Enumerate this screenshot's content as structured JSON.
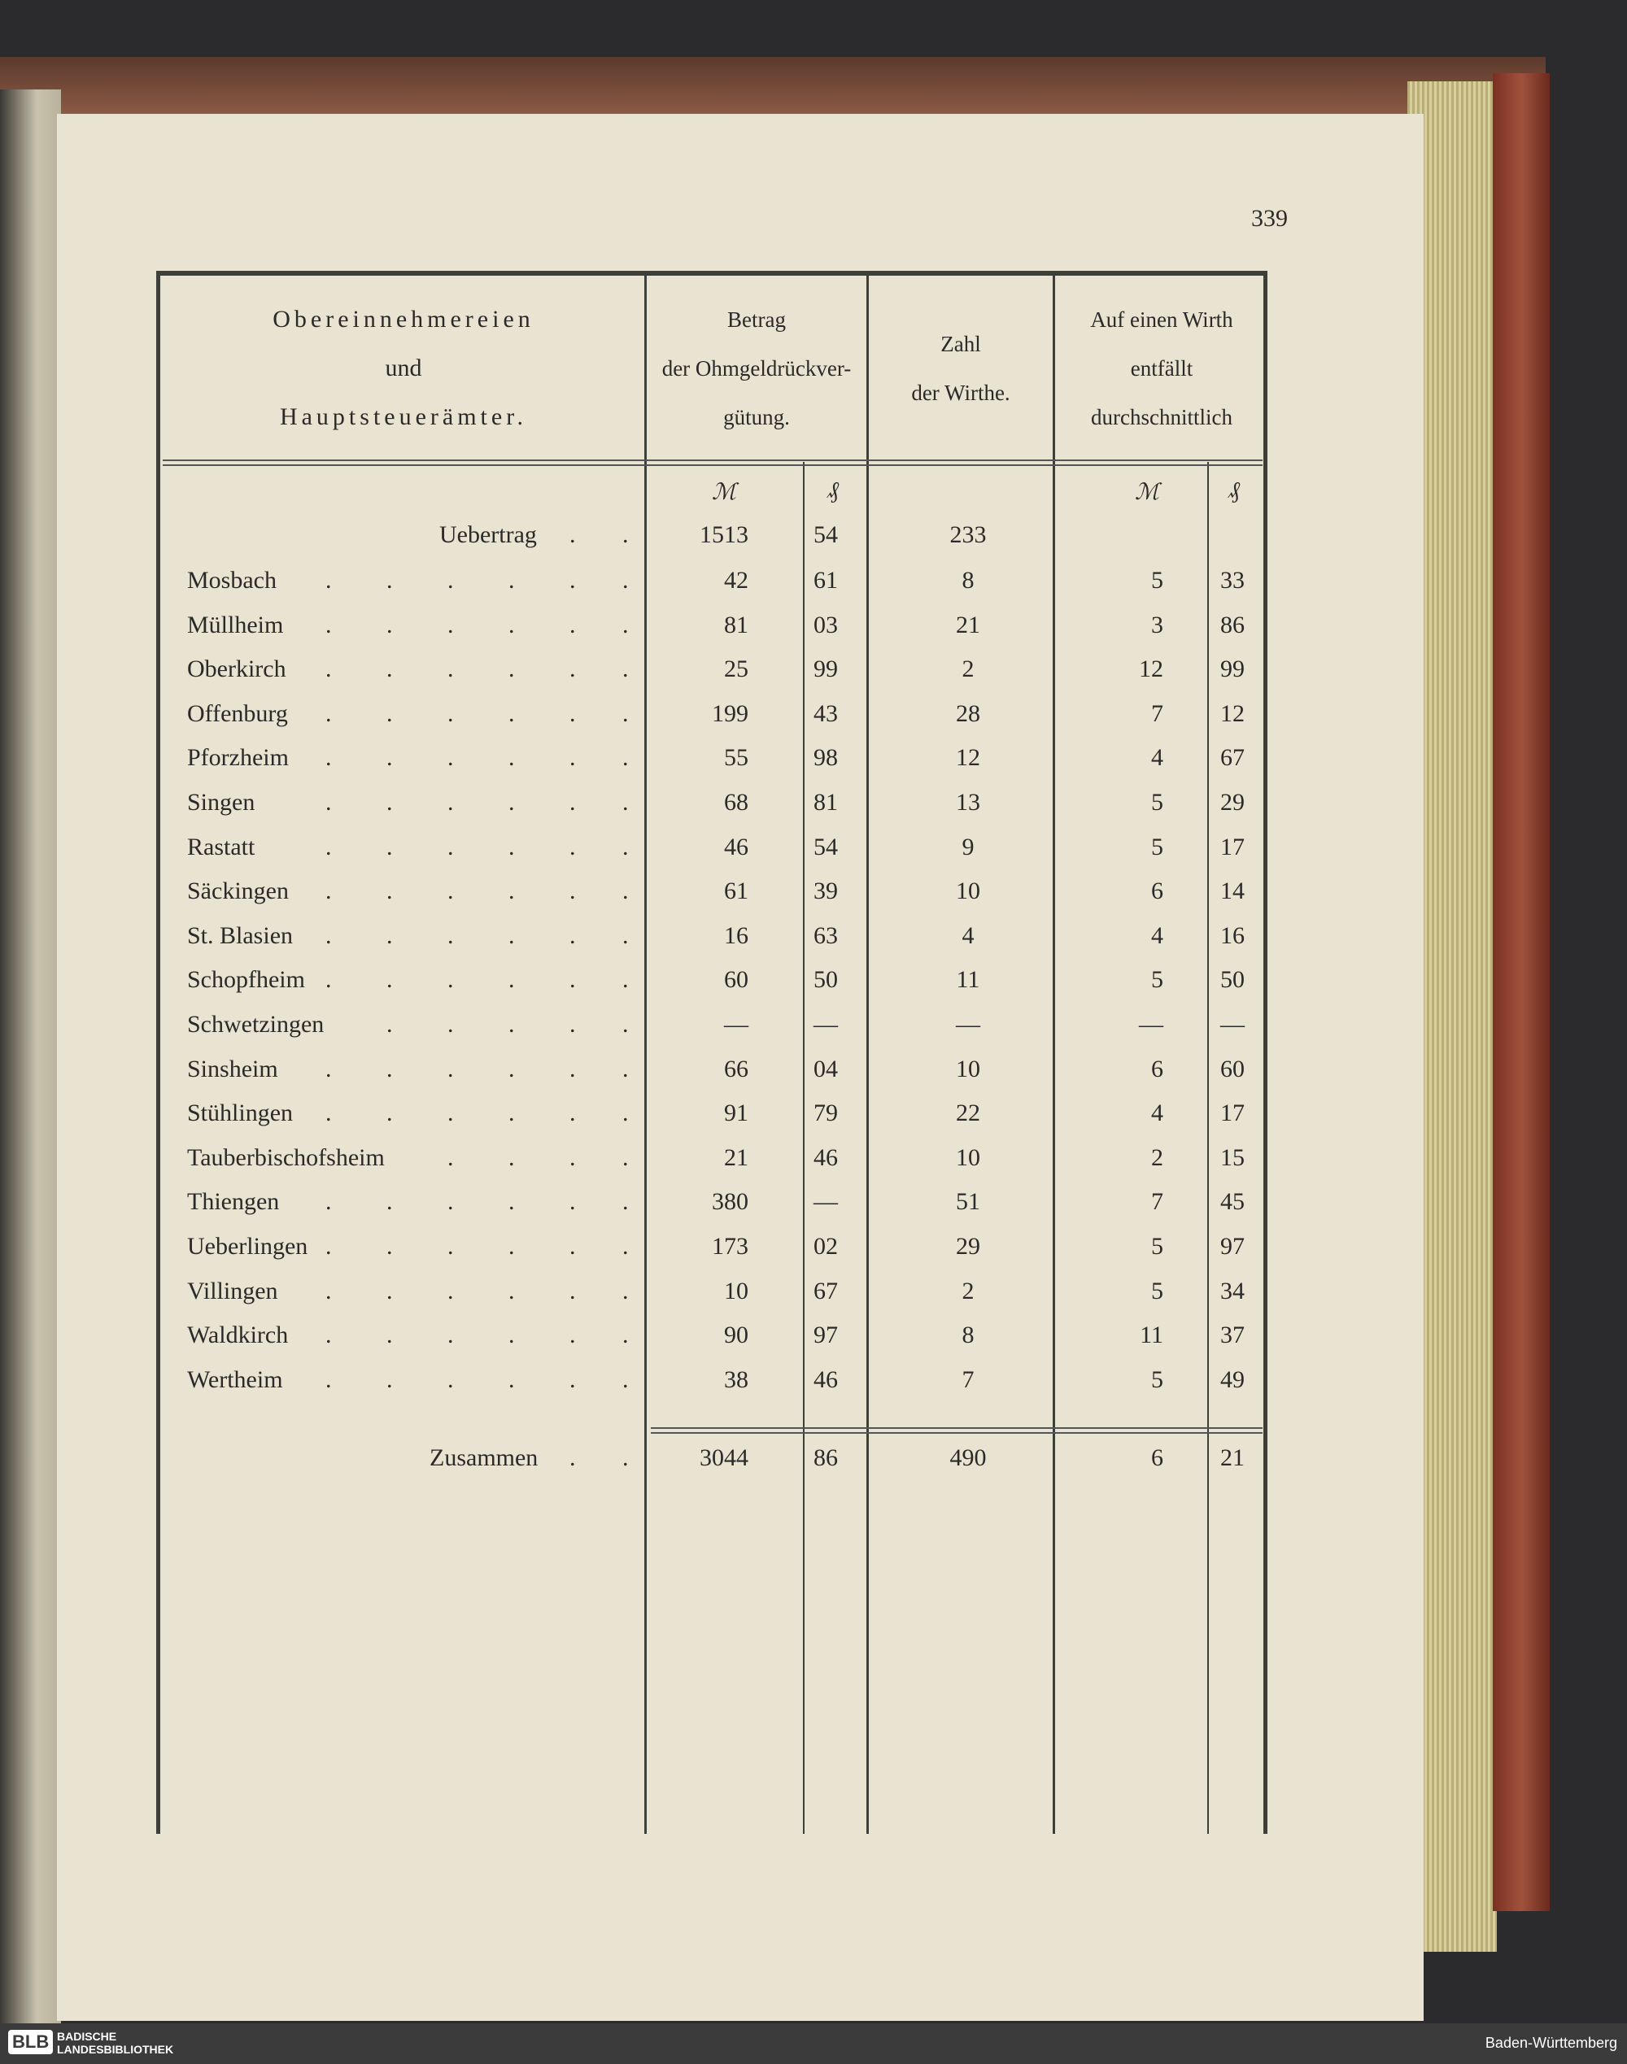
{
  "page_number": "339",
  "header": {
    "col1": [
      "Obereinnehmereien",
      "und",
      "Hauptsteuerämter."
    ],
    "col2": [
      "Betrag",
      "der Ohmgeldrückver-",
      "gütung."
    ],
    "col3": [
      "Zahl",
      "der Wirthe."
    ],
    "col4": [
      "Auf einen Wirth",
      "entfällt",
      "durchschnittlich"
    ],
    "unit_mark": "ℳ",
    "unit_pf": "₰"
  },
  "carry": {
    "label": "Uebertrag",
    "mark": "1513",
    "pf": "54",
    "wirthe": "233"
  },
  "rows": [
    {
      "name": "Mosbach",
      "mark": "42",
      "pf": "61",
      "wirthe": "8",
      "avg_mark": "5",
      "avg_pf": "33"
    },
    {
      "name": "Müllheim",
      "mark": "81",
      "pf": "03",
      "wirthe": "21",
      "avg_mark": "3",
      "avg_pf": "86"
    },
    {
      "name": "Oberkirch",
      "mark": "25",
      "pf": "99",
      "wirthe": "2",
      "avg_mark": "12",
      "avg_pf": "99"
    },
    {
      "name": "Offenburg",
      "mark": "199",
      "pf": "43",
      "wirthe": "28",
      "avg_mark": "7",
      "avg_pf": "12"
    },
    {
      "name": "Pforzheim",
      "mark": "55",
      "pf": "98",
      "wirthe": "12",
      "avg_mark": "4",
      "avg_pf": "67"
    },
    {
      "name": "Singen",
      "mark": "68",
      "pf": "81",
      "wirthe": "13",
      "avg_mark": "5",
      "avg_pf": "29"
    },
    {
      "name": "Rastatt",
      "mark": "46",
      "pf": "54",
      "wirthe": "9",
      "avg_mark": "5",
      "avg_pf": "17"
    },
    {
      "name": "Säckingen",
      "mark": "61",
      "pf": "39",
      "wirthe": "10",
      "avg_mark": "6",
      "avg_pf": "14"
    },
    {
      "name": "St. Blasien",
      "mark": "16",
      "pf": "63",
      "wirthe": "4",
      "avg_mark": "4",
      "avg_pf": "16"
    },
    {
      "name": "Schopfheim",
      "mark": "60",
      "pf": "50",
      "wirthe": "11",
      "avg_mark": "5",
      "avg_pf": "50"
    },
    {
      "name": "Schwetzingen",
      "mark": "—",
      "pf": "—",
      "wirthe": "—",
      "avg_mark": "—",
      "avg_pf": "—"
    },
    {
      "name": "Sinsheim",
      "mark": "66",
      "pf": "04",
      "wirthe": "10",
      "avg_mark": "6",
      "avg_pf": "60"
    },
    {
      "name": "Stühlingen",
      "mark": "91",
      "pf": "79",
      "wirthe": "22",
      "avg_mark": "4",
      "avg_pf": "17"
    },
    {
      "name": "Tauberbischofsheim",
      "mark": "21",
      "pf": "46",
      "wirthe": "10",
      "avg_mark": "2",
      "avg_pf": "15"
    },
    {
      "name": "Thiengen",
      "mark": "380",
      "pf": "—",
      "wirthe": "51",
      "avg_mark": "7",
      "avg_pf": "45"
    },
    {
      "name": "Ueberlingen",
      "mark": "173",
      "pf": "02",
      "wirthe": "29",
      "avg_mark": "5",
      "avg_pf": "97"
    },
    {
      "name": "Villingen",
      "mark": "10",
      "pf": "67",
      "wirthe": "2",
      "avg_mark": "5",
      "avg_pf": "34"
    },
    {
      "name": "Waldkirch",
      "mark": "90",
      "pf": "97",
      "wirthe": "8",
      "avg_mark": "11",
      "avg_pf": "37"
    },
    {
      "name": "Wertheim",
      "mark": "38",
      "pf": "46",
      "wirthe": "7",
      "avg_mark": "5",
      "avg_pf": "49"
    }
  ],
  "total": {
    "label": "Zusammen",
    "mark": "3044",
    "pf": "86",
    "wirthe": "490",
    "avg_mark": "6",
    "avg_pf": "21"
  },
  "footer": {
    "logo": "BLB",
    "library_line1": "BADISCHE",
    "library_line2": "LANDESBIBLIOTHEK",
    "state": "Baden-Württemberg"
  }
}
